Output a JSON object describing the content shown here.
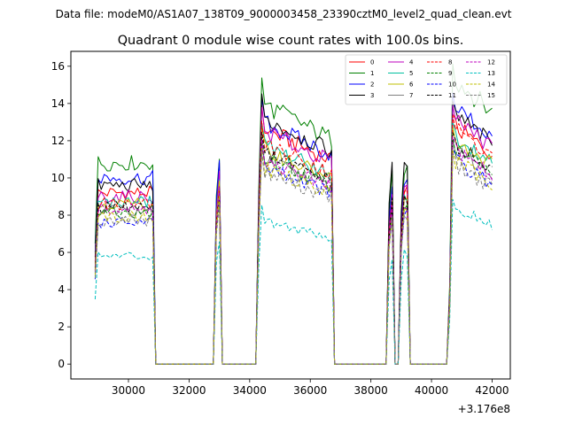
{
  "suptitle": "Data file: modeM0/AS1A07_138T09_9000003458_23390cztM0_level2_quad_clean.evt",
  "chart_data": {
    "type": "line",
    "title": "Quadrant 0 module wise count rates with 100.0s bins.",
    "xlabel": "",
    "ylabel": "",
    "x_offset_label": "+3.176e8",
    "xlim": [
      28100,
      42600
    ],
    "ylim": [
      -0.8,
      16.8
    ],
    "xticks": [
      30000,
      32000,
      34000,
      36000,
      38000,
      40000,
      42000
    ],
    "xtick_labels": [
      "30000",
      "32000",
      "34000",
      "36000",
      "38000",
      "40000",
      "42000"
    ],
    "yticks": [
      0,
      2,
      4,
      6,
      8,
      10,
      12,
      14,
      16
    ],
    "ytick_labels": [
      "0",
      "2",
      "4",
      "6",
      "8",
      "10",
      "12",
      "14",
      "16"
    ],
    "grid": false,
    "legend_position": "top-right",
    "segments": [
      {
        "start": 28900,
        "end": 30800,
        "edge_factor": 0.6
      },
      {
        "start": 32900,
        "end": 33000,
        "edge_factor": 0.8
      },
      {
        "start": 34300,
        "end": 36700,
        "edge_factor": 0.75
      },
      {
        "start": 38600,
        "end": 38700,
        "edge_factor": 0.8
      },
      {
        "start": 39000,
        "end": 39200,
        "edge_factor": 0.75
      },
      {
        "start": 40600,
        "end": 42000,
        "edge_factor": 0.3
      }
    ],
    "zero_gaps": [
      {
        "start": 31000,
        "end": 32700
      },
      {
        "start": 33200,
        "end": 34100
      },
      {
        "start": 36800,
        "end": 38500
      },
      {
        "start": 39300,
        "end": 40400
      }
    ],
    "series": [
      {
        "name": "0",
        "color": "#ff0000",
        "dashed": false,
        "levels": [
          9.2,
          10.5,
          11.4,
          8.8,
          9.3,
          12.0
        ]
      },
      {
        "name": "1",
        "color": "#008000",
        "dashed": false,
        "levels": [
          10.8,
          11.3,
          12.6,
          10.2,
          10.4,
          14.4
        ]
      },
      {
        "name": "2",
        "color": "#0000ff",
        "dashed": false,
        "levels": [
          10.0,
          10.9,
          11.7,
          9.7,
          10.0,
          13.0
        ]
      },
      {
        "name": "3",
        "color": "#000000",
        "dashed": false,
        "levels": [
          9.6,
          10.3,
          11.9,
          10.8,
          10.9,
          12.6
        ]
      },
      {
        "name": "4",
        "color": "#bf00bf",
        "dashed": false,
        "levels": [
          9.0,
          10.1,
          11.3,
          9.1,
          9.4,
          12.4
        ]
      },
      {
        "name": "5",
        "color": "#00bfa0",
        "dashed": false,
        "levels": [
          8.7,
          9.7,
          10.6,
          8.6,
          8.9,
          11.6
        ]
      },
      {
        "name": "6",
        "color": "#bfbf00",
        "dashed": false,
        "levels": [
          8.6,
          9.6,
          10.4,
          8.7,
          8.8,
          11.4
        ]
      },
      {
        "name": "7",
        "color": "#808080",
        "dashed": false,
        "levels": [
          8.3,
          9.2,
          9.9,
          8.5,
          8.6,
          10.8
        ]
      },
      {
        "name": "8",
        "color": "#ff0000",
        "dashed": true,
        "levels": [
          8.6,
          9.6,
          10.7,
          8.8,
          9.0,
          11.9
        ]
      },
      {
        "name": "9",
        "color": "#008000",
        "dashed": true,
        "levels": [
          8.1,
          9.1,
          10.0,
          8.2,
          8.5,
          10.9
        ]
      },
      {
        "name": "10",
        "color": "#0000ff",
        "dashed": true,
        "levels": [
          7.6,
          8.9,
          9.6,
          7.9,
          8.2,
          10.3
        ]
      },
      {
        "name": "11",
        "color": "#000000",
        "dashed": true,
        "levels": [
          8.4,
          9.3,
          10.2,
          8.6,
          8.8,
          11.1
        ]
      },
      {
        "name": "12",
        "color": "#bf00bf",
        "dashed": true,
        "levels": [
          8.3,
          9.2,
          9.9,
          8.4,
          8.6,
          10.9
        ]
      },
      {
        "name": "13",
        "color": "#00bfbf",
        "dashed": true,
        "levels": [
          5.8,
          6.8,
          7.0,
          5.6,
          6.0,
          7.9
        ]
      },
      {
        "name": "14",
        "color": "#bfbf00",
        "dashed": true,
        "levels": [
          7.9,
          8.9,
          9.5,
          7.9,
          8.1,
          10.3
        ]
      },
      {
        "name": "15",
        "color": "#808080",
        "dashed": true,
        "levels": [
          7.7,
          8.7,
          9.3,
          7.8,
          8.0,
          10.1
        ]
      }
    ]
  }
}
